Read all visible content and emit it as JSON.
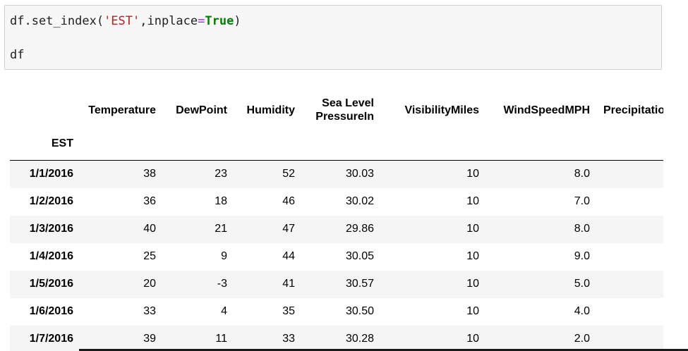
{
  "code_cell": {
    "line1": {
      "prefix": "df.set_index(",
      "arg_string": "'EST'",
      "comma": ",inplace",
      "equals": "=",
      "keyword": "True",
      "suffix": ")"
    },
    "line2": "df"
  },
  "dataframe": {
    "index_name": "EST",
    "columns": [
      {
        "line1": "Temperature",
        "line2": ""
      },
      {
        "line1": "DewPoint",
        "line2": ""
      },
      {
        "line1": "Humidity",
        "line2": ""
      },
      {
        "line1": "Sea Level",
        "line2": "PressureIn"
      },
      {
        "line1": "VisibilityMiles",
        "line2": ""
      },
      {
        "line1": "WindSpeedMPH",
        "line2": ""
      },
      {
        "line1": "Precipitatio",
        "line2": ""
      }
    ],
    "rows": [
      {
        "index": "1/1/2016",
        "values": [
          "38",
          "23",
          "52",
          "30.03",
          "10",
          "8.0",
          ""
        ]
      },
      {
        "index": "1/2/2016",
        "values": [
          "36",
          "18",
          "46",
          "30.02",
          "10",
          "7.0",
          ""
        ]
      },
      {
        "index": "1/3/2016",
        "values": [
          "40",
          "21",
          "47",
          "29.86",
          "10",
          "8.0",
          ""
        ]
      },
      {
        "index": "1/4/2016",
        "values": [
          "25",
          "9",
          "44",
          "30.05",
          "10",
          "9.0",
          ""
        ]
      },
      {
        "index": "1/5/2016",
        "values": [
          "20",
          "-3",
          "41",
          "30.57",
          "10",
          "5.0",
          ""
        ]
      },
      {
        "index": "1/6/2016",
        "values": [
          "33",
          "4",
          "35",
          "30.50",
          "10",
          "4.0",
          ""
        ]
      },
      {
        "index": "1/7/2016",
        "values": [
          "39",
          "11",
          "33",
          "30.28",
          "10",
          "2.0",
          ""
        ]
      }
    ]
  },
  "colors": {
    "string": "#ba2121",
    "operator": "#aa22ff",
    "keyword": "#008000"
  }
}
